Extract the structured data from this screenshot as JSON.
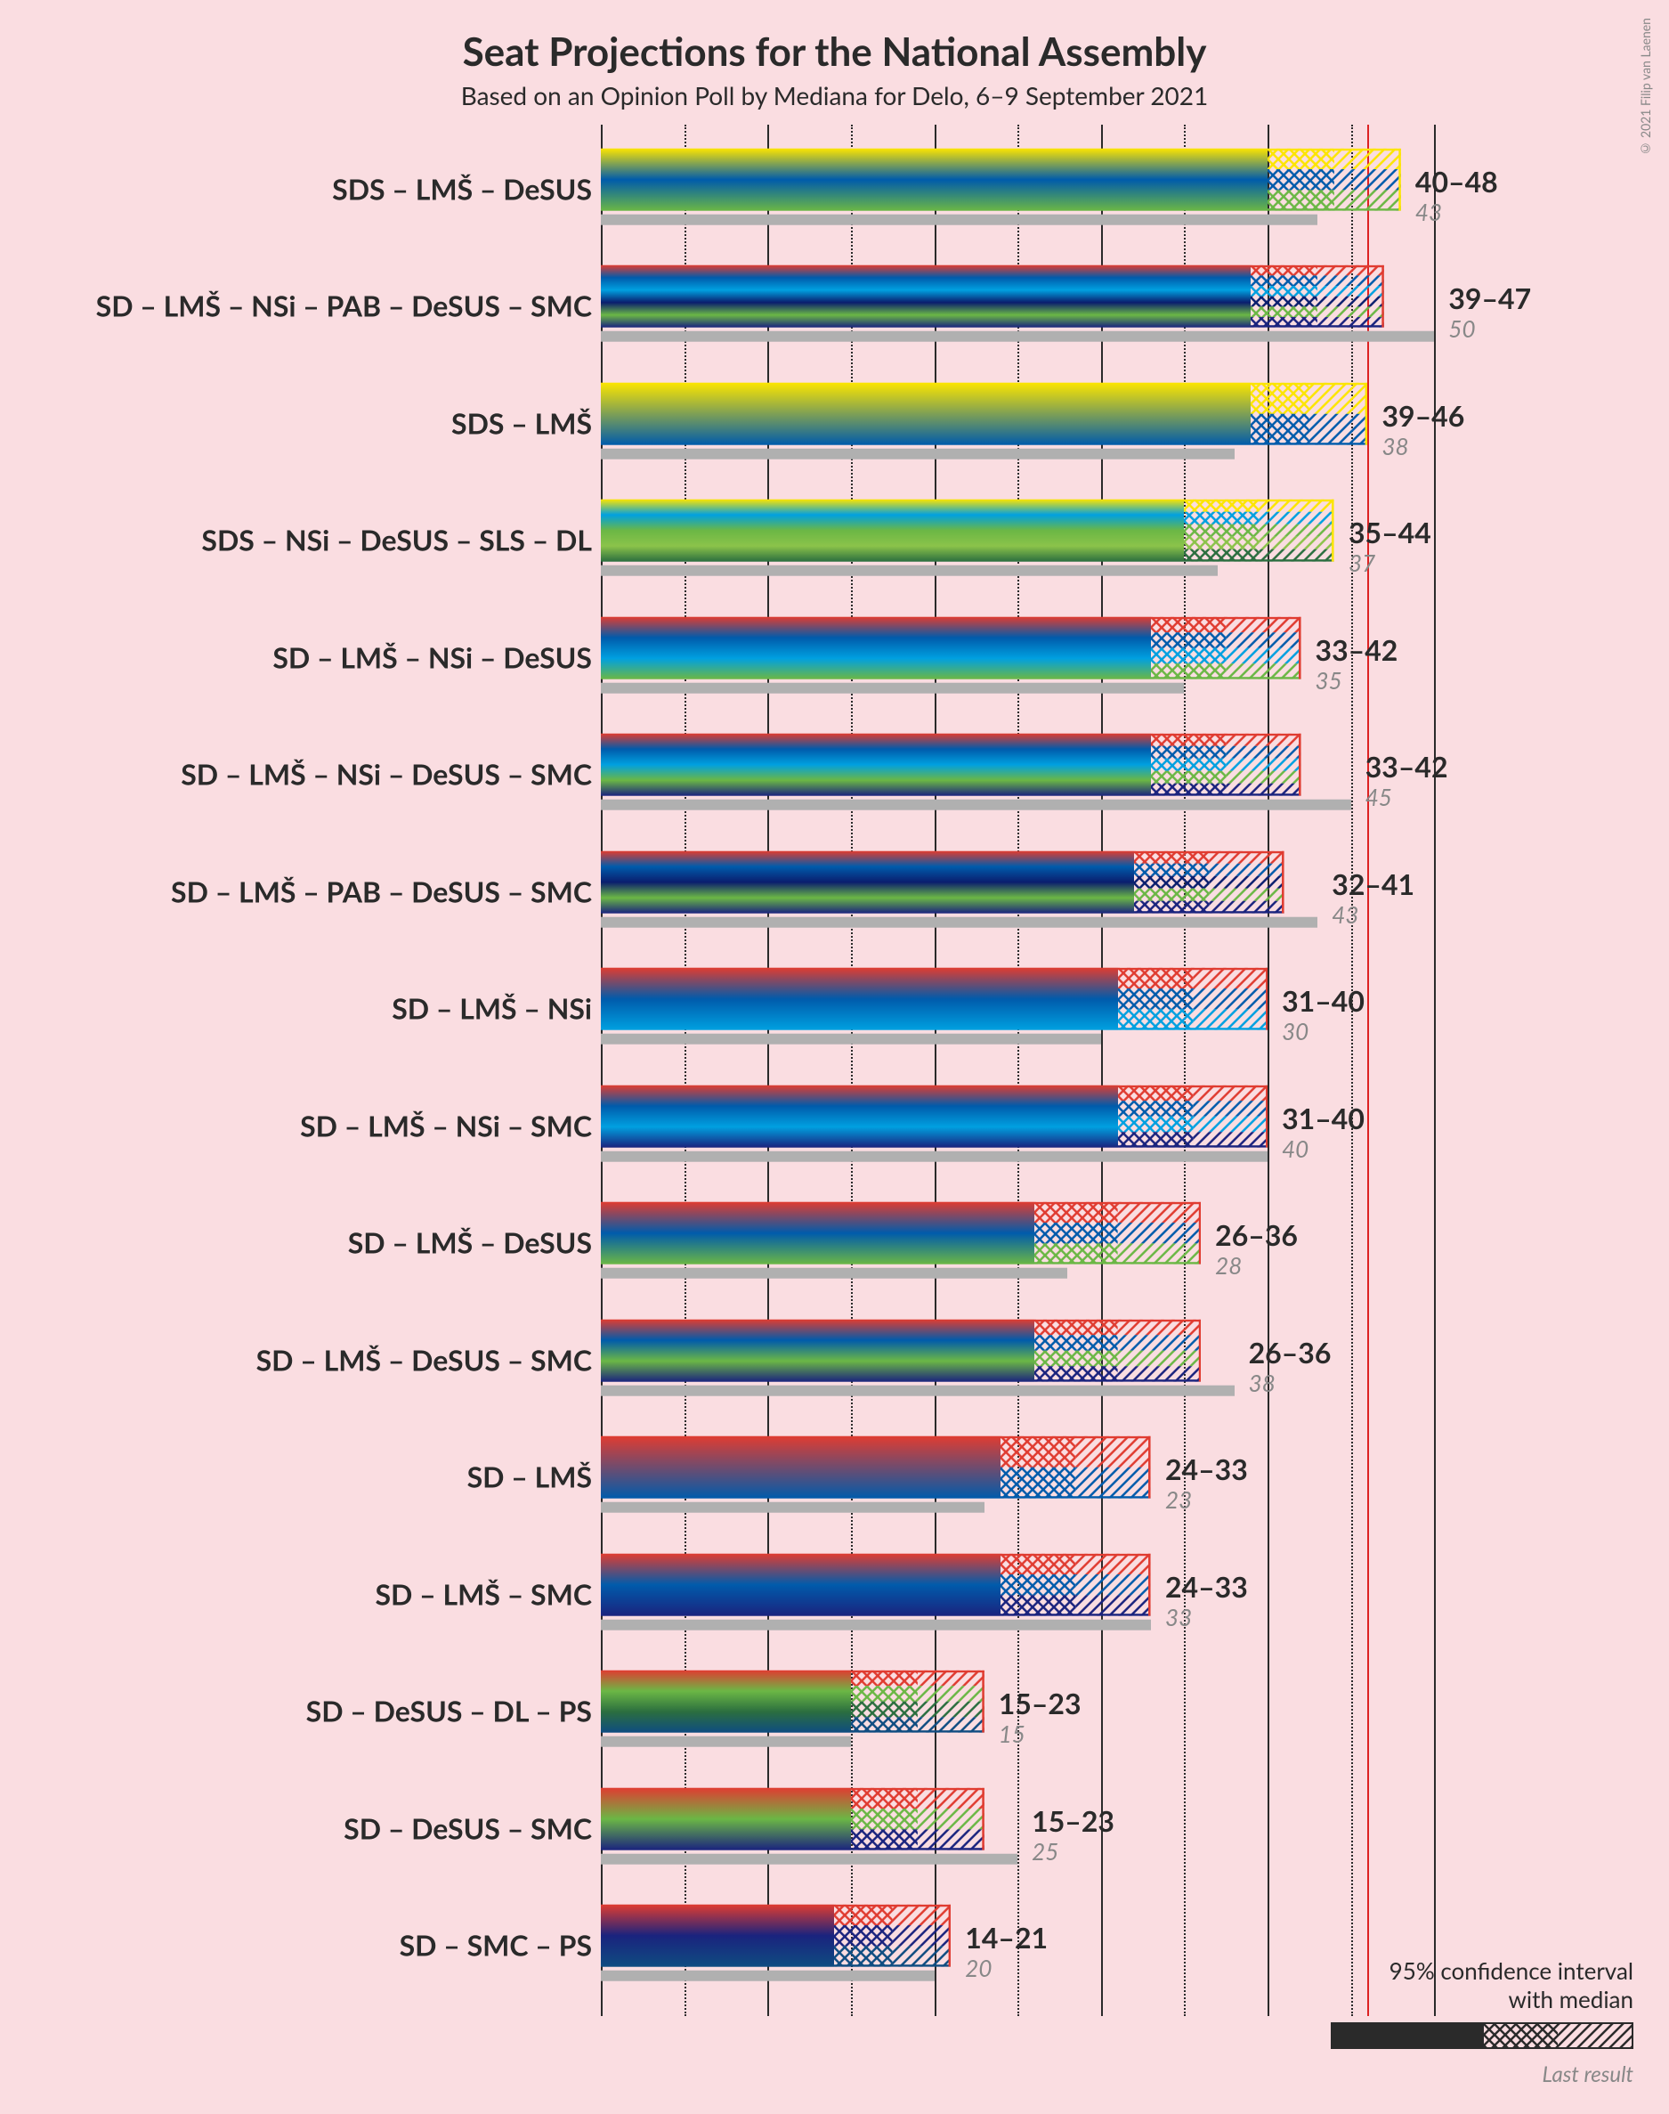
{
  "title": "Seat Projections for the National Assembly",
  "subtitle": "Based on an Opinion Poll by Mediana for Delo, 6–9 September 2021",
  "copyright": "© 2021 Filip van Laenen",
  "background_color": "#fadde1",
  "majority_line": 46,
  "xmax": 55,
  "gridlines_solid": [
    0,
    10,
    20,
    30,
    40,
    50
  ],
  "gridlines_dotted": [
    5,
    15,
    25,
    35,
    45
  ],
  "party_colors": {
    "SDS": "#fce500",
    "LMS": "#005bab",
    "DeSUS": "#6bb745",
    "SD": "#e03c31",
    "NSi": "#00a0e0",
    "PAB": "#0a1e6e",
    "SMC": "#1a237e",
    "SLS": "#8bc34a",
    "DL": "#2b6e3f",
    "PS": "#0f4c81"
  },
  "legend": {
    "line1": "95% confidence interval",
    "line2": "with median",
    "last": "Last result"
  },
  "rows": [
    {
      "label": "SDS – LMŠ – DeSUS",
      "parties": [
        "SDS",
        "LMS",
        "DeSUS"
      ],
      "low": 40,
      "high": 48,
      "median": 44,
      "last": 43
    },
    {
      "label": "SD – LMŠ – NSi – PAB – DeSUS – SMC",
      "parties": [
        "SD",
        "LMS",
        "NSi",
        "PAB",
        "DeSUS",
        "SMC"
      ],
      "low": 39,
      "high": 47,
      "median": 43,
      "last": 50
    },
    {
      "label": "SDS – LMŠ",
      "parties": [
        "SDS",
        "LMS"
      ],
      "low": 39,
      "high": 46,
      "median": 42,
      "last": 38
    },
    {
      "label": "SDS – NSi – DeSUS – SLS – DL",
      "parties": [
        "SDS",
        "NSi",
        "DeSUS",
        "SLS",
        "DL"
      ],
      "low": 35,
      "high": 44,
      "median": 39,
      "last": 37
    },
    {
      "label": "SD – LMŠ – NSi – DeSUS",
      "parties": [
        "SD",
        "LMS",
        "NSi",
        "DeSUS"
      ],
      "low": 33,
      "high": 42,
      "median": 37,
      "last": 35
    },
    {
      "label": "SD – LMŠ – NSi – DeSUS – SMC",
      "parties": [
        "SD",
        "LMS",
        "NSi",
        "DeSUS",
        "SMC"
      ],
      "low": 33,
      "high": 42,
      "median": 37,
      "last": 45
    },
    {
      "label": "SD – LMŠ – PAB – DeSUS – SMC",
      "parties": [
        "SD",
        "LMS",
        "PAB",
        "DeSUS",
        "SMC"
      ],
      "low": 32,
      "high": 41,
      "median": 36,
      "last": 43
    },
    {
      "label": "SD – LMŠ – NSi",
      "parties": [
        "SD",
        "LMS",
        "NSi"
      ],
      "low": 31,
      "high": 40,
      "median": 35,
      "last": 30
    },
    {
      "label": "SD – LMŠ – NSi – SMC",
      "parties": [
        "SD",
        "LMS",
        "NSi",
        "SMC"
      ],
      "low": 31,
      "high": 40,
      "median": 35,
      "last": 40
    },
    {
      "label": "SD – LMŠ – DeSUS",
      "parties": [
        "SD",
        "LMS",
        "DeSUS"
      ],
      "low": 26,
      "high": 36,
      "median": 31,
      "last": 28
    },
    {
      "label": "SD – LMŠ – DeSUS – SMC",
      "parties": [
        "SD",
        "LMS",
        "DeSUS",
        "SMC"
      ],
      "low": 26,
      "high": 36,
      "median": 31,
      "last": 38
    },
    {
      "label": "SD – LMŠ",
      "parties": [
        "SD",
        "LMS"
      ],
      "low": 24,
      "high": 33,
      "median": 28,
      "last": 23
    },
    {
      "label": "SD – LMŠ – SMC",
      "parties": [
        "SD",
        "LMS",
        "SMC"
      ],
      "low": 24,
      "high": 33,
      "median": 28,
      "last": 33
    },
    {
      "label": "SD – DeSUS – DL – PS",
      "parties": [
        "SD",
        "DeSUS",
        "DL",
        "PS"
      ],
      "low": 15,
      "high": 23,
      "median": 19,
      "last": 15
    },
    {
      "label": "SD – DeSUS – SMC",
      "parties": [
        "SD",
        "DeSUS",
        "SMC"
      ],
      "low": 15,
      "high": 23,
      "median": 19,
      "last": 25
    },
    {
      "label": "SD – SMC – PS",
      "parties": [
        "SD",
        "SMC",
        "PS"
      ],
      "low": 14,
      "high": 21,
      "median": 17,
      "last": 20
    }
  ]
}
